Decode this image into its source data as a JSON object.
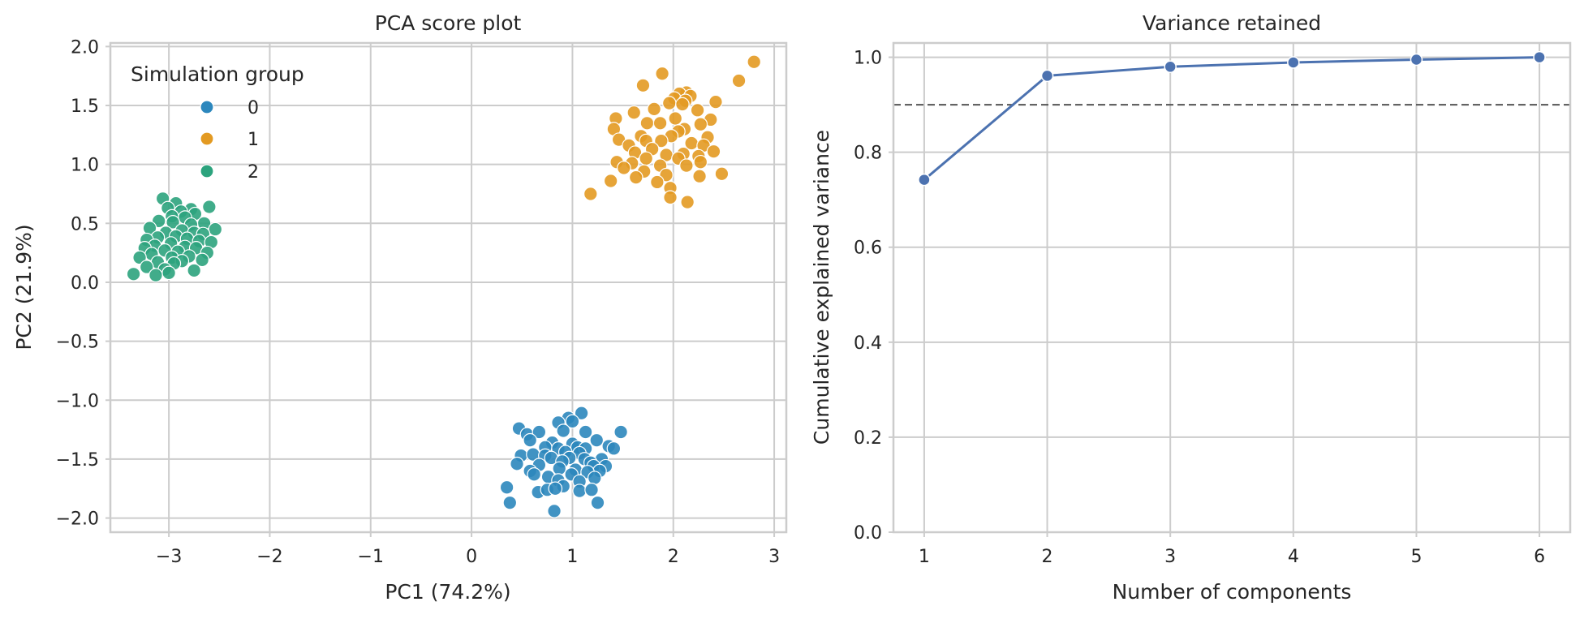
{
  "chart_data": [
    {
      "type": "scatter",
      "title": "PCA score plot",
      "xlabel": "PC1 (74.2%)",
      "ylabel": "PC2 (21.9%)",
      "xlim": [
        -3.58,
        3.12
      ],
      "ylim": [
        -2.12,
        2.03
      ],
      "xticks": [
        -3,
        -2,
        -1,
        0,
        1,
        2,
        3
      ],
      "xtick_labels": [
        "−3",
        "−2",
        "−1",
        "0",
        "1",
        "2",
        "3"
      ],
      "yticks": [
        -2.0,
        -1.5,
        -1.0,
        -0.5,
        0.0,
        0.5,
        1.0,
        1.5,
        2.0
      ],
      "ytick_labels": [
        "−2.0",
        "−1.5",
        "−1.0",
        "−0.5",
        "0.0",
        "0.5",
        "1.0",
        "1.5",
        "2.0"
      ],
      "grid": true,
      "legend": {
        "title": "Simulation group",
        "placement": "upper-left",
        "entries": [
          {
            "label": "0",
            "color": "#2c87bd"
          },
          {
            "label": "1",
            "color": "#e39a22"
          },
          {
            "label": "2",
            "color": "#2ca37d"
          }
        ]
      },
      "series": [
        {
          "name": "0",
          "color": "#2c87bd",
          "points": [
            [
              1.09,
              -1.11
            ],
            [
              0.96,
              -1.15
            ],
            [
              1.0,
              -1.18
            ],
            [
              0.86,
              -1.19
            ],
            [
              0.47,
              -1.24
            ],
            [
              1.48,
              -1.27
            ],
            [
              0.55,
              -1.29
            ],
            [
              0.67,
              -1.27
            ],
            [
              0.91,
              -1.26
            ],
            [
              1.13,
              -1.27
            ],
            [
              0.58,
              -1.34
            ],
            [
              1.24,
              -1.34
            ],
            [
              1.36,
              -1.39
            ],
            [
              1.0,
              -1.37
            ],
            [
              0.8,
              -1.36
            ],
            [
              0.73,
              -1.4
            ],
            [
              0.86,
              -1.41
            ],
            [
              1.05,
              -1.4
            ],
            [
              1.13,
              -1.41
            ],
            [
              1.41,
              -1.41
            ],
            [
              0.93,
              -1.44
            ],
            [
              0.49,
              -1.47
            ],
            [
              0.61,
              -1.46
            ],
            [
              0.73,
              -1.47
            ],
            [
              1.07,
              -1.45
            ],
            [
              0.79,
              -1.49
            ],
            [
              0.97,
              -1.49
            ],
            [
              1.12,
              -1.5
            ],
            [
              1.29,
              -1.5
            ],
            [
              0.45,
              -1.54
            ],
            [
              0.9,
              -1.52
            ],
            [
              1.18,
              -1.53
            ],
            [
              0.67,
              -1.55
            ],
            [
              1.21,
              -1.56
            ],
            [
              1.33,
              -1.56
            ],
            [
              0.58,
              -1.6
            ],
            [
              0.87,
              -1.58
            ],
            [
              1.03,
              -1.59
            ],
            [
              1.27,
              -1.6
            ],
            [
              0.62,
              -1.63
            ],
            [
              0.99,
              -1.63
            ],
            [
              1.15,
              -1.61
            ],
            [
              0.76,
              -1.65
            ],
            [
              1.22,
              -1.66
            ],
            [
              0.86,
              -1.68
            ],
            [
              1.07,
              -1.69
            ],
            [
              0.91,
              -1.73
            ],
            [
              0.35,
              -1.74
            ],
            [
              0.66,
              -1.78
            ],
            [
              0.75,
              -1.76
            ],
            [
              0.83,
              -1.75
            ],
            [
              1.07,
              -1.77
            ],
            [
              1.19,
              -1.76
            ],
            [
              0.38,
              -1.87
            ],
            [
              1.25,
              -1.87
            ],
            [
              0.82,
              -1.94
            ]
          ]
        },
        {
          "name": "1",
          "color": "#e39a22",
          "points": [
            [
              2.8,
              1.87
            ],
            [
              1.89,
              1.77
            ],
            [
              2.65,
              1.71
            ],
            [
              1.7,
              1.67
            ],
            [
              2.13,
              1.61
            ],
            [
              2.06,
              1.6
            ],
            [
              2.17,
              1.58
            ],
            [
              2.01,
              1.56
            ],
            [
              2.12,
              1.54
            ],
            [
              2.42,
              1.53
            ],
            [
              1.96,
              1.52
            ],
            [
              2.09,
              1.51
            ],
            [
              1.81,
              1.47
            ],
            [
              2.24,
              1.46
            ],
            [
              1.61,
              1.44
            ],
            [
              1.43,
              1.39
            ],
            [
              2.02,
              1.39
            ],
            [
              2.37,
              1.38
            ],
            [
              1.74,
              1.35
            ],
            [
              1.87,
              1.35
            ],
            [
              2.27,
              1.34
            ],
            [
              1.41,
              1.3
            ],
            [
              2.11,
              1.3
            ],
            [
              2.05,
              1.28
            ],
            [
              1.68,
              1.24
            ],
            [
              1.98,
              1.24
            ],
            [
              2.34,
              1.23
            ],
            [
              1.46,
              1.21
            ],
            [
              1.73,
              1.2
            ],
            [
              1.88,
              1.2
            ],
            [
              2.18,
              1.18
            ],
            [
              1.56,
              1.16
            ],
            [
              2.3,
              1.16
            ],
            [
              1.79,
              1.13
            ],
            [
              2.4,
              1.11
            ],
            [
              1.62,
              1.1
            ],
            [
              2.1,
              1.09
            ],
            [
              1.93,
              1.08
            ],
            [
              2.25,
              1.07
            ],
            [
              1.73,
              1.05
            ],
            [
              2.05,
              1.05
            ],
            [
              1.44,
              1.02
            ],
            [
              2.27,
              1.02
            ],
            [
              1.59,
              1.01
            ],
            [
              1.87,
              0.99
            ],
            [
              2.13,
              0.99
            ],
            [
              1.51,
              0.97
            ],
            [
              1.71,
              0.94
            ],
            [
              2.48,
              0.92
            ],
            [
              1.93,
              0.91
            ],
            [
              2.26,
              0.9
            ],
            [
              1.63,
              0.89
            ],
            [
              1.38,
              0.86
            ],
            [
              1.84,
              0.85
            ],
            [
              1.97,
              0.8
            ],
            [
              1.18,
              0.75
            ],
            [
              1.97,
              0.72
            ],
            [
              2.14,
              0.68
            ]
          ]
        },
        {
          "name": "2",
          "color": "#2ca37d",
          "points": [
            [
              -3.06,
              0.71
            ],
            [
              -2.93,
              0.67
            ],
            [
              -2.6,
              0.64
            ],
            [
              -2.78,
              0.62
            ],
            [
              -3.01,
              0.63
            ],
            [
              -2.88,
              0.6
            ],
            [
              -2.74,
              0.58
            ],
            [
              -2.97,
              0.56
            ],
            [
              -2.84,
              0.55
            ],
            [
              -3.1,
              0.52
            ],
            [
              -2.96,
              0.51
            ],
            [
              -2.65,
              0.5
            ],
            [
              -2.78,
              0.49
            ],
            [
              -3.19,
              0.46
            ],
            [
              -2.54,
              0.45
            ],
            [
              -2.87,
              0.44
            ],
            [
              -3.03,
              0.42
            ],
            [
              -2.75,
              0.42
            ],
            [
              -2.66,
              0.41
            ],
            [
              -2.93,
              0.39
            ],
            [
              -3.11,
              0.38
            ],
            [
              -2.82,
              0.37
            ],
            [
              -3.22,
              0.36
            ],
            [
              -2.7,
              0.35
            ],
            [
              -2.58,
              0.34
            ],
            [
              -2.98,
              0.33
            ],
            [
              -3.14,
              0.31
            ],
            [
              -2.84,
              0.3
            ],
            [
              -3.24,
              0.29
            ],
            [
              -2.73,
              0.29
            ],
            [
              -3.04,
              0.27
            ],
            [
              -2.91,
              0.26
            ],
            [
              -2.62,
              0.25
            ],
            [
              -3.17,
              0.24
            ],
            [
              -2.8,
              0.22
            ],
            [
              -3.29,
              0.21
            ],
            [
              -2.97,
              0.21
            ],
            [
              -2.67,
              0.19
            ],
            [
              -2.87,
              0.18
            ],
            [
              -3.11,
              0.17
            ],
            [
              -2.95,
              0.16
            ],
            [
              -3.22,
              0.13
            ],
            [
              -3.04,
              0.11
            ],
            [
              -2.75,
              0.1
            ],
            [
              -3.0,
              0.08
            ],
            [
              -3.35,
              0.07
            ],
            [
              -3.13,
              0.06
            ]
          ]
        }
      ]
    },
    {
      "type": "line",
      "title": "Variance retained",
      "xlabel": "Number of components",
      "ylabel": "Cumulative explained variance",
      "xlim": [
        0.75,
        6.25
      ],
      "ylim": [
        0.0,
        1.03
      ],
      "xticks": [
        1,
        2,
        3,
        4,
        5,
        6
      ],
      "xtick_labels": [
        "1",
        "2",
        "3",
        "4",
        "5",
        "6"
      ],
      "yticks": [
        0.0,
        0.2,
        0.4,
        0.6,
        0.8,
        1.0
      ],
      "ytick_labels": [
        "0.0",
        "0.2",
        "0.4",
        "0.6",
        "0.8",
        "1.0"
      ],
      "grid": true,
      "reference_line": {
        "y": 0.9,
        "style": "dashed",
        "color": "#555555"
      },
      "series": [
        {
          "color": "#4c72b0",
          "x": [
            1,
            2,
            3,
            4,
            5,
            6
          ],
          "values": [
            0.742,
            0.961,
            0.98,
            0.989,
            0.995,
            1.0
          ]
        }
      ]
    }
  ]
}
